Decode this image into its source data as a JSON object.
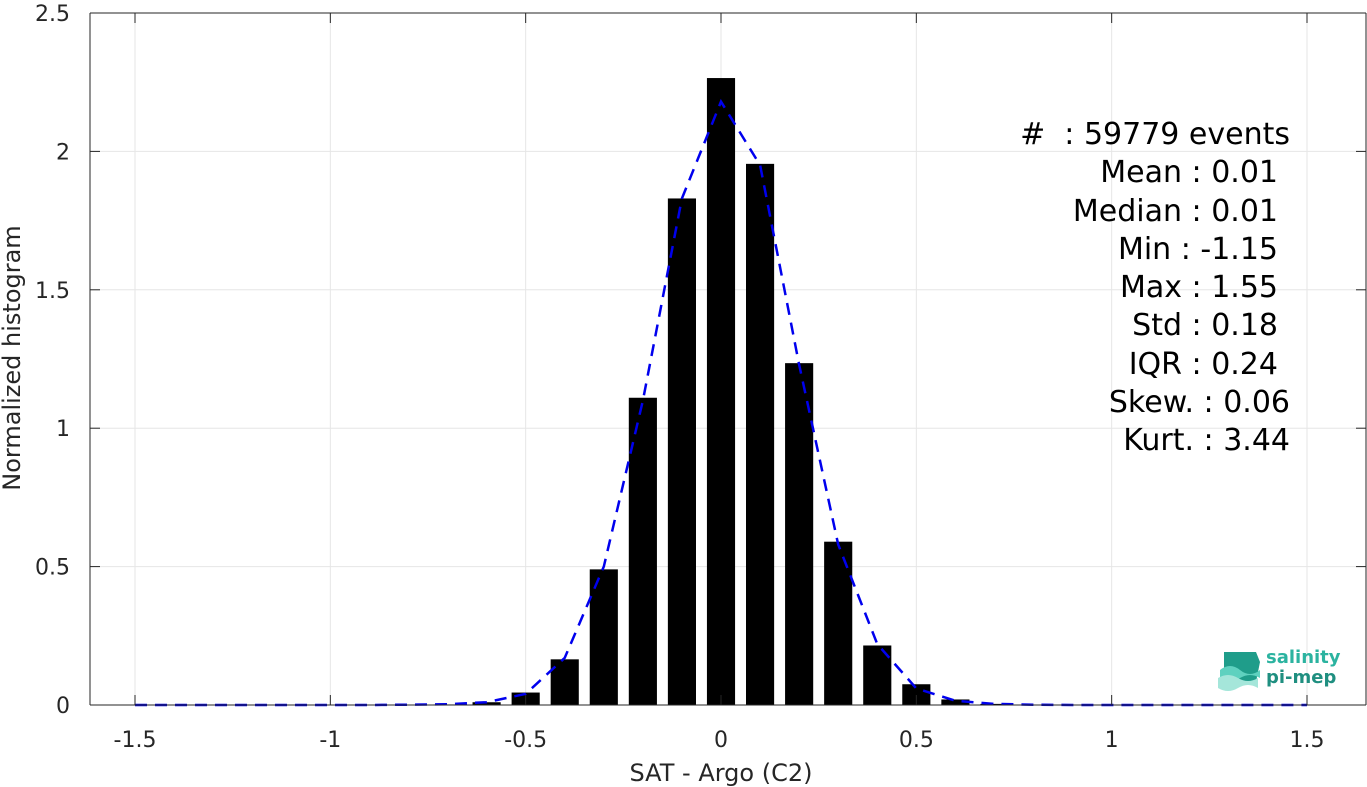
{
  "chart_data": {
    "type": "bar",
    "xlabel": "SAT - Argo (C2)",
    "ylabel": "Normalized histogram",
    "xlim": [
      -1.5,
      1.5
    ],
    "ylim": [
      0,
      2.5
    ],
    "xticks": [
      -1.5,
      -1,
      -0.5,
      0,
      0.5,
      1,
      1.5
    ],
    "xtick_labels": [
      "-1.5",
      "-1",
      "-0.5",
      "0",
      "0.5",
      "1",
      "1.5"
    ],
    "yticks": [
      0,
      0.5,
      1,
      1.5,
      2,
      2.5
    ],
    "ytick_labels": [
      "0",
      "0.5",
      "1",
      "1.5",
      "2",
      "2.5"
    ],
    "grid": true,
    "bar_color": "#000000",
    "fit_color": "#0000ee",
    "bars": {
      "x": [
        -0.7,
        -0.6,
        -0.5,
        -0.4,
        -0.3,
        -0.2,
        -0.1,
        0.0,
        0.1,
        0.2,
        0.3,
        0.4,
        0.5,
        0.6,
        0.7
      ],
      "values": [
        0.002,
        0.01,
        0.045,
        0.165,
        0.49,
        1.11,
        1.83,
        2.265,
        1.955,
        1.235,
        0.59,
        0.215,
        0.075,
        0.02,
        0.004
      ]
    },
    "fit_curve": {
      "style": "dashed",
      "x": [
        -1.5,
        -1.4,
        -1.3,
        -1.2,
        -1.1,
        -1.0,
        -0.9,
        -0.8,
        -0.7,
        -0.6,
        -0.5,
        -0.4,
        -0.3,
        -0.2,
        -0.1,
        0.0,
        0.1,
        0.2,
        0.3,
        0.4,
        0.5,
        0.6,
        0.7,
        0.8,
        0.9,
        1.0,
        1.1,
        1.2,
        1.3,
        1.4,
        1.5
      ],
      "y": [
        0,
        0,
        0,
        0,
        0,
        0,
        0,
        0.001,
        0.003,
        0.01,
        0.04,
        0.17,
        0.5,
        1.1,
        1.83,
        2.18,
        1.95,
        1.23,
        0.58,
        0.22,
        0.06,
        0.015,
        0.004,
        0.001,
        0,
        0,
        0,
        0,
        0,
        0,
        0
      ]
    }
  },
  "stats": {
    "count": "#  : 59779 events",
    "mean": "Mean : 0.01",
    "median": "Median : 0.01",
    "min": "Min : -1.15",
    "max": "Max : 1.55",
    "std": "Std : 0.18",
    "iqr": "IQR : 0.24",
    "skew": "Skew. : 0.06",
    "kurt": "Kurt. : 3.44"
  },
  "logo": {
    "line1": "salinity",
    "line2": "pi-mep",
    "icon": "wave-logo-icon"
  }
}
